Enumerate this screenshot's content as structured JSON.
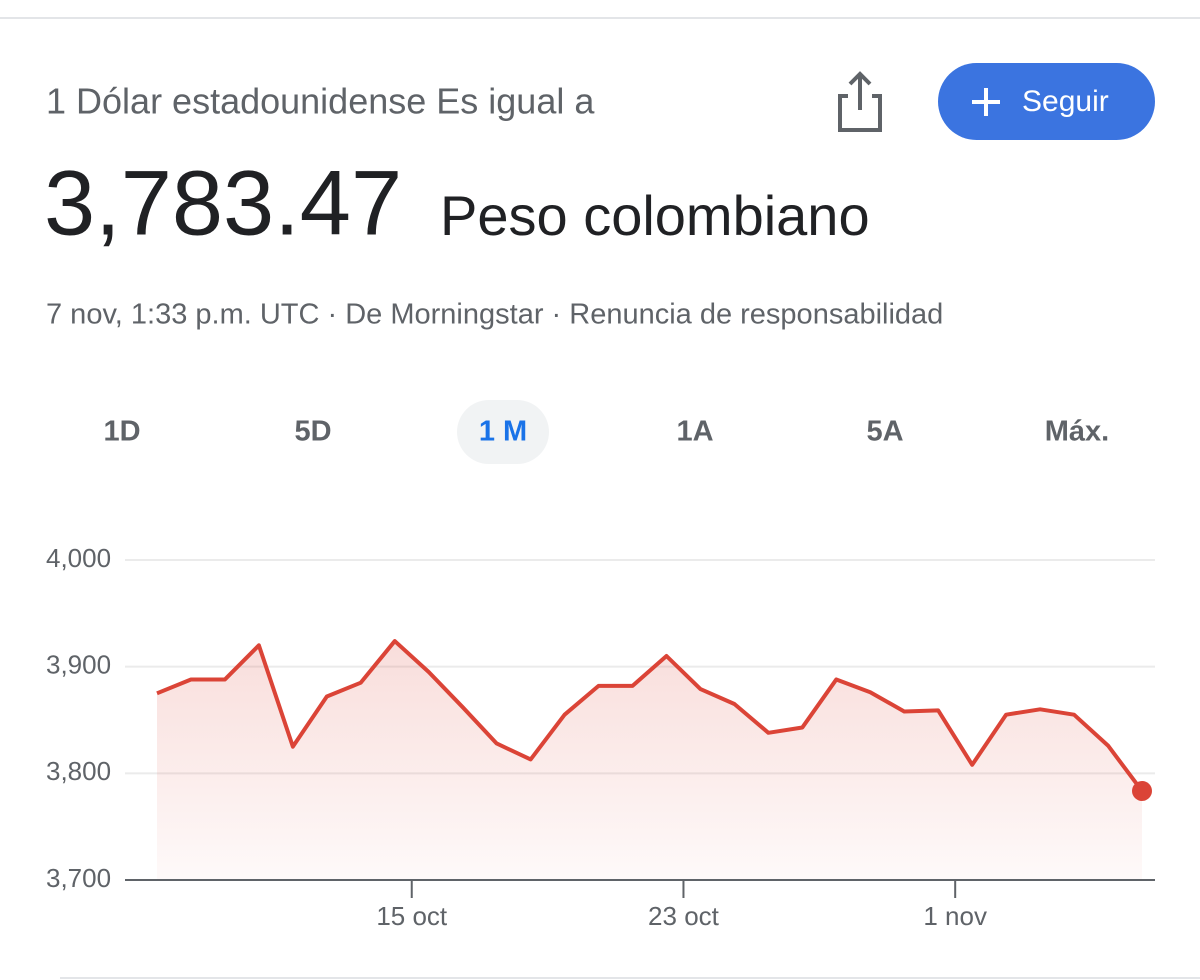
{
  "header": {
    "subtitle": "1 Dólar estadounidense Es igual a",
    "value": "3,783.47",
    "currency": "Peso colombiano",
    "meta": "7 nov, 1:33 p.m. UTC · De Morningstar · Renuncia de responsabilidad",
    "follow": "Seguir"
  },
  "tabs": {
    "labels": [
      "1D",
      "5D",
      "1 M",
      "1A",
      "5A",
      "Máx."
    ],
    "active": 2
  },
  "chart_data": {
    "type": "line",
    "categories": [
      null,
      null,
      null,
      null,
      null,
      null,
      null,
      "15 oct",
      null,
      null,
      null,
      null,
      null,
      null,
      null,
      "23 oct",
      null,
      null,
      null,
      null,
      null,
      null,
      null,
      "1 nov",
      null,
      null,
      null,
      null,
      null,
      null
    ],
    "values": [
      3875,
      3888,
      3888,
      3920,
      3825,
      3872,
      3885,
      3924,
      3895,
      3862,
      3828,
      3813,
      3855,
      3882,
      3882,
      3910,
      3879,
      3865,
      3838,
      3843,
      3888,
      3876,
      3858,
      3859,
      3808,
      3855,
      3860,
      3855,
      3826,
      3783.47
    ],
    "color": "#db4437",
    "ylim": [
      3700,
      4000
    ],
    "yticks": [
      {
        "value": 3700,
        "label": "3,700"
      },
      {
        "value": 3800,
        "label": "3,800"
      },
      {
        "value": 3900,
        "label": "3,900"
      },
      {
        "value": 4000,
        "label": "4,000"
      }
    ],
    "grid": true
  }
}
